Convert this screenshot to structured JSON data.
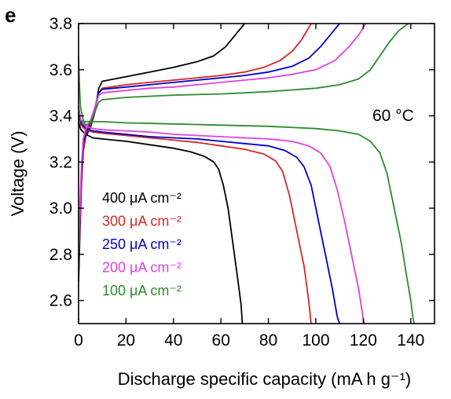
{
  "panel_label": "e",
  "chart_data": {
    "type": "line",
    "title": "",
    "xlabel": "Discharge specific capacity (mA h g⁻¹)",
    "ylabel": "Voltage (V)",
    "xlim": [
      0,
      150
    ],
    "ylim": [
      2.5,
      3.8
    ],
    "x_ticks": [
      "0",
      "20",
      "40",
      "60",
      "80",
      "100",
      "120",
      "140"
    ],
    "y_ticks": [
      "2.6",
      "2.8",
      "3.0",
      "3.2",
      "3.4",
      "3.6",
      "3.8"
    ],
    "annotation": "60 °C",
    "grid": false,
    "legend_position": "lower-left",
    "series": [
      {
        "name": "400 μA cm⁻²",
        "color": "#000000",
        "charge": [
          [
            0,
            2.68
          ],
          [
            0.6,
            2.9
          ],
          [
            1.2,
            3.1
          ],
          [
            2,
            3.25
          ],
          [
            3,
            3.31
          ],
          [
            5,
            3.35
          ],
          [
            7,
            3.42
          ],
          [
            8.5,
            3.52
          ],
          [
            10,
            3.55
          ],
          [
            20,
            3.57
          ],
          [
            30,
            3.59
          ],
          [
            40,
            3.61
          ],
          [
            50,
            3.635
          ],
          [
            57,
            3.66
          ],
          [
            62,
            3.7
          ],
          [
            66,
            3.75
          ],
          [
            70,
            3.8
          ]
        ],
        "discharge": [
          [
            0,
            3.37
          ],
          [
            1,
            3.34
          ],
          [
            3,
            3.32
          ],
          [
            6,
            3.305
          ],
          [
            10,
            3.3
          ],
          [
            20,
            3.29
          ],
          [
            30,
            3.275
          ],
          [
            40,
            3.26
          ],
          [
            47,
            3.245
          ],
          [
            53,
            3.225
          ],
          [
            57,
            3.2
          ],
          [
            59,
            3.17
          ],
          [
            61,
            3.1
          ],
          [
            63,
            3.0
          ],
          [
            65,
            2.85
          ],
          [
            67,
            2.7
          ],
          [
            68.5,
            2.58
          ],
          [
            69,
            2.5
          ]
        ]
      },
      {
        "name": "300 μA cm⁻²",
        "color": "#d62728",
        "charge": [
          [
            0,
            2.75
          ],
          [
            0.6,
            2.95
          ],
          [
            1.2,
            3.12
          ],
          [
            2,
            3.26
          ],
          [
            3,
            3.32
          ],
          [
            5,
            3.36
          ],
          [
            7,
            3.43
          ],
          [
            8.5,
            3.5
          ],
          [
            10,
            3.52
          ],
          [
            20,
            3.535
          ],
          [
            30,
            3.545
          ],
          [
            40,
            3.555
          ],
          [
            50,
            3.565
          ],
          [
            60,
            3.575
          ],
          [
            70,
            3.59
          ],
          [
            78,
            3.61
          ],
          [
            85,
            3.64
          ],
          [
            90,
            3.68
          ],
          [
            94,
            3.73
          ],
          [
            98,
            3.8
          ]
        ],
        "discharge": [
          [
            0,
            3.4
          ],
          [
            1,
            3.36
          ],
          [
            3,
            3.34
          ],
          [
            6,
            3.33
          ],
          [
            10,
            3.325
          ],
          [
            20,
            3.315
          ],
          [
            30,
            3.305
          ],
          [
            40,
            3.295
          ],
          [
            50,
            3.285
          ],
          [
            60,
            3.27
          ],
          [
            70,
            3.255
          ],
          [
            78,
            3.235
          ],
          [
            83,
            3.205
          ],
          [
            86,
            3.16
          ],
          [
            89,
            3.05
          ],
          [
            92,
            2.9
          ],
          [
            95,
            2.75
          ],
          [
            97,
            2.6
          ],
          [
            98,
            2.5
          ]
        ]
      },
      {
        "name": "250 μA cm⁻²",
        "color": "#0000cc",
        "charge": [
          [
            0,
            2.78
          ],
          [
            0.6,
            2.98
          ],
          [
            1.2,
            3.15
          ],
          [
            2,
            3.28
          ],
          [
            3,
            3.33
          ],
          [
            5,
            3.37
          ],
          [
            7,
            3.44
          ],
          [
            8.5,
            3.5
          ],
          [
            10,
            3.515
          ],
          [
            20,
            3.525
          ],
          [
            30,
            3.535
          ],
          [
            40,
            3.545
          ],
          [
            50,
            3.555
          ],
          [
            60,
            3.565
          ],
          [
            70,
            3.575
          ],
          [
            80,
            3.59
          ],
          [
            90,
            3.615
          ],
          [
            97,
            3.65
          ],
          [
            102,
            3.7
          ],
          [
            106,
            3.75
          ],
          [
            110,
            3.8
          ]
        ],
        "discharge": [
          [
            0,
            3.42
          ],
          [
            1,
            3.37
          ],
          [
            3,
            3.345
          ],
          [
            6,
            3.335
          ],
          [
            10,
            3.33
          ],
          [
            20,
            3.32
          ],
          [
            30,
            3.31
          ],
          [
            40,
            3.305
          ],
          [
            50,
            3.3
          ],
          [
            60,
            3.29
          ],
          [
            70,
            3.28
          ],
          [
            80,
            3.27
          ],
          [
            87,
            3.25
          ],
          [
            92,
            3.22
          ],
          [
            95,
            3.18
          ],
          [
            98,
            3.1
          ],
          [
            101,
            2.95
          ],
          [
            104,
            2.8
          ],
          [
            107,
            2.65
          ],
          [
            109,
            2.53
          ],
          [
            110,
            2.5
          ]
        ]
      },
      {
        "name": "200 μA cm⁻²",
        "color": "#e040e0",
        "charge": [
          [
            0,
            2.8
          ],
          [
            0.6,
            3.0
          ],
          [
            1.2,
            3.18
          ],
          [
            2,
            3.3
          ],
          [
            3,
            3.34
          ],
          [
            5,
            3.38
          ],
          [
            7,
            3.44
          ],
          [
            8.5,
            3.49
          ],
          [
            10,
            3.5
          ],
          [
            20,
            3.51
          ],
          [
            30,
            3.52
          ],
          [
            40,
            3.525
          ],
          [
            50,
            3.535
          ],
          [
            60,
            3.545
          ],
          [
            70,
            3.555
          ],
          [
            80,
            3.565
          ],
          [
            90,
            3.58
          ],
          [
            100,
            3.6
          ],
          [
            108,
            3.64
          ],
          [
            114,
            3.7
          ],
          [
            118,
            3.75
          ],
          [
            121,
            3.8
          ]
        ],
        "discharge": [
          [
            0,
            3.44
          ],
          [
            1,
            3.38
          ],
          [
            3,
            3.355
          ],
          [
            6,
            3.345
          ],
          [
            10,
            3.34
          ],
          [
            20,
            3.335
          ],
          [
            30,
            3.33
          ],
          [
            40,
            3.32
          ],
          [
            50,
            3.315
          ],
          [
            60,
            3.31
          ],
          [
            70,
            3.305
          ],
          [
            80,
            3.3
          ],
          [
            90,
            3.29
          ],
          [
            97,
            3.27
          ],
          [
            102,
            3.24
          ],
          [
            106,
            3.18
          ],
          [
            109,
            3.08
          ],
          [
            112,
            2.95
          ],
          [
            115,
            2.8
          ],
          [
            118,
            2.65
          ],
          [
            120,
            2.52
          ],
          [
            120.5,
            2.5
          ]
        ]
      },
      {
        "name": "100 μA cm⁻²",
        "color": "#2e8b2e",
        "charge": [
          [
            0,
            3.66
          ],
          [
            0.3,
            3.55
          ],
          [
            0.8,
            3.44
          ],
          [
            2,
            3.38
          ],
          [
            3,
            3.36
          ],
          [
            5,
            3.37
          ],
          [
            7,
            3.42
          ],
          [
            8.5,
            3.46
          ],
          [
            10,
            3.47
          ],
          [
            20,
            3.48
          ],
          [
            40,
            3.49
          ],
          [
            60,
            3.495
          ],
          [
            80,
            3.505
          ],
          [
            100,
            3.52
          ],
          [
            110,
            3.535
          ],
          [
            118,
            3.56
          ],
          [
            123,
            3.6
          ],
          [
            127,
            3.66
          ],
          [
            131,
            3.72
          ],
          [
            135,
            3.77
          ],
          [
            139,
            3.8
          ]
        ],
        "discharge": [
          [
            0,
            3.38
          ],
          [
            3,
            3.375
          ],
          [
            10,
            3.375
          ],
          [
            20,
            3.37
          ],
          [
            40,
            3.365
          ],
          [
            60,
            3.36
          ],
          [
            80,
            3.355
          ],
          [
            100,
            3.345
          ],
          [
            110,
            3.335
          ],
          [
            118,
            3.32
          ],
          [
            123,
            3.29
          ],
          [
            127,
            3.24
          ],
          [
            130,
            3.15
          ],
          [
            133,
            3.0
          ],
          [
            136,
            2.85
          ],
          [
            138,
            2.72
          ],
          [
            140,
            2.6
          ],
          [
            141,
            2.52
          ],
          [
            141.5,
            2.5
          ]
        ]
      }
    ]
  }
}
